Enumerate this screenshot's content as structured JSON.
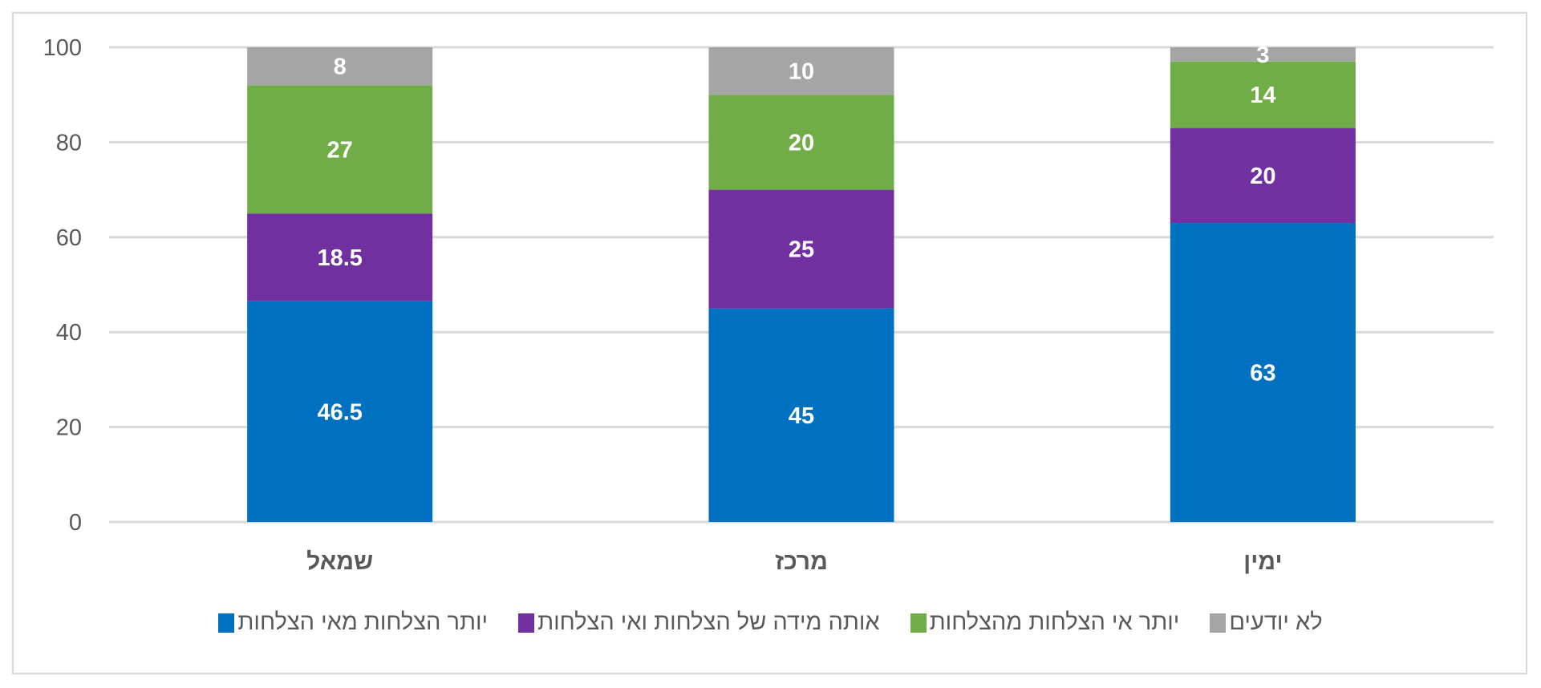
{
  "chart_data": {
    "type": "bar",
    "stacked": true,
    "title": "",
    "xlabel": "",
    "ylabel": "",
    "ylim": [
      0,
      100
    ],
    "yticks": [
      0,
      20,
      40,
      60,
      80,
      100
    ],
    "grid": true,
    "legend_position": "bottom",
    "categories": [
      "שמאל",
      "מרכז",
      "ימין"
    ],
    "series": [
      {
        "name": "יותר הצלחות מאי הצלחות",
        "color": "#0070c0",
        "values": [
          46.5,
          45,
          63
        ]
      },
      {
        "name": "אותה מידה של הצלחות ואי הצלחות",
        "color": "#7030a0",
        "values": [
          18.5,
          25,
          20
        ]
      },
      {
        "name": "יותר אי הצלחות מהצלחות",
        "color": "#70ad47",
        "values": [
          27,
          20,
          14
        ]
      },
      {
        "name": "לא יודעים",
        "color": "#a5a5a5",
        "values": [
          8,
          10,
          3
        ]
      }
    ]
  }
}
